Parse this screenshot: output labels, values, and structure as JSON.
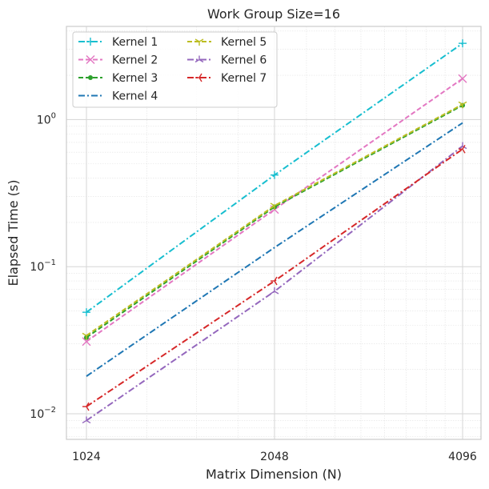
{
  "chart_data": {
    "type": "line",
    "title": "Work Group Size=16",
    "xlabel": "Matrix Dimension (N)",
    "ylabel": "Elapsed Time (s)",
    "x": [
      1024,
      2048,
      4096
    ],
    "x_tick_labels": [
      "1024",
      "2048",
      "4096"
    ],
    "y_scale": "log",
    "ylim": [
      0.0067,
      4.3
    ],
    "y_ticks": [
      {
        "value": 0.01,
        "base": "10",
        "exp": "−2"
      },
      {
        "value": 0.1,
        "base": "10",
        "exp": "−1"
      },
      {
        "value": 1,
        "base": "10",
        "exp": "0"
      }
    ],
    "grid": "major and minor",
    "legend_position": "top-left",
    "series": [
      {
        "name": "Kernel 1",
        "values": [
          0.049,
          0.42,
          3.3
        ],
        "color": "#17becf",
        "dash": "dashdot",
        "marker": "plus"
      },
      {
        "name": "Kernel 2",
        "values": [
          0.031,
          0.245,
          1.9
        ],
        "color": "#e377c2",
        "dash": "dashed",
        "marker": "x"
      },
      {
        "name": "Kernel 3",
        "values": [
          0.033,
          0.255,
          1.25
        ],
        "color": "#2ca02c",
        "dash": "dashed",
        "marker": "dot"
      },
      {
        "name": "Kernel 4",
        "values": [
          0.018,
          0.135,
          0.95
        ],
        "color": "#1f77b4",
        "dash": "dashdot",
        "marker": "none"
      },
      {
        "name": "Kernel 5",
        "values": [
          0.034,
          0.26,
          1.27
        ],
        "color": "#bcbd22",
        "dash": "dashed",
        "marker": "tri_down"
      },
      {
        "name": "Kernel 6",
        "values": [
          0.009,
          0.068,
          0.66
        ],
        "color": "#9467bd",
        "dash": "dashdot",
        "marker": "tri_up"
      },
      {
        "name": "Kernel 7",
        "values": [
          0.0112,
          0.08,
          0.63
        ],
        "color": "#d62728",
        "dash": "dashdot",
        "marker": "tri_left"
      }
    ]
  }
}
